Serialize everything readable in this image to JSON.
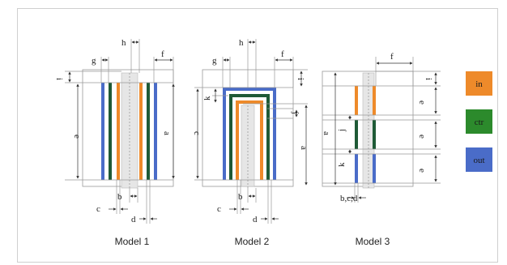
{
  "models": [
    {
      "caption": "Model 1"
    },
    {
      "caption": "Model 2"
    },
    {
      "caption": "Model 3"
    }
  ],
  "legend": [
    {
      "label": "in",
      "color": "#ee8a2a"
    },
    {
      "label": "ctr",
      "color": "#2c8a2c"
    },
    {
      "label": "out",
      "color": "#4a6cc8"
    }
  ],
  "colors": {
    "inner": "#ee8a2a",
    "center": "#1f5a36",
    "outer": "#4a6cc8",
    "fiber": "#d9d9d9"
  },
  "labels": {
    "a": "a",
    "b": "b",
    "c": "c",
    "d": "d",
    "e": "e",
    "f": "f",
    "g": "g",
    "h": "h",
    "i": "i",
    "j": "j",
    "k": "k",
    "bcd": "b,c,d"
  }
}
